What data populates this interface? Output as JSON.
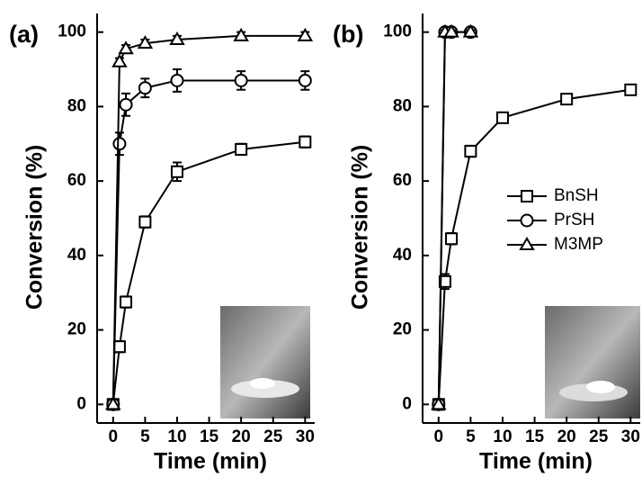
{
  "chart_data": [
    {
      "type": "line",
      "title": "(a)",
      "xlabel": "Time (min)",
      "ylabel": "Conversion (%)",
      "xlim": [
        -2.5,
        31.5
      ],
      "ylim": [
        -5,
        105
      ],
      "xticks": [
        0,
        5,
        10,
        15,
        20,
        25,
        30
      ],
      "yticks": [
        0,
        20,
        40,
        60,
        80,
        100
      ],
      "series": [
        {
          "marker": "square",
          "color": "#000000",
          "x": [
            0,
            1,
            2,
            5,
            10,
            20,
            30
          ],
          "values": [
            0,
            15.5,
            27.5,
            49,
            62.5,
            68.5,
            70.5
          ],
          "errors": [
            0,
            1.5,
            1.5,
            1.5,
            2.5,
            1.5,
            1.5
          ]
        },
        {
          "marker": "circle",
          "color": "#000000",
          "x": [
            0,
            1,
            2,
            5,
            10,
            20,
            30
          ],
          "values": [
            0,
            70,
            80.5,
            85,
            87,
            87,
            87
          ],
          "errors": [
            0,
            3,
            3,
            2.5,
            3,
            2.5,
            2.5
          ]
        },
        {
          "marker": "triangle",
          "color": "#000000",
          "x": [
            0,
            1,
            2,
            5,
            10,
            20,
            30
          ],
          "values": [
            0,
            92,
            95.5,
            97,
            98,
            99,
            99
          ],
          "errors": [
            0,
            1,
            1,
            1,
            1,
            1,
            1
          ]
        }
      ]
    },
    {
      "type": "line",
      "title": "(b)",
      "xlabel": "Time (min)",
      "ylabel": "Conversion (%)",
      "xlim": [
        -2.5,
        31.5
      ],
      "ylim": [
        -5,
        105
      ],
      "xticks": [
        0,
        5,
        10,
        15,
        20,
        25,
        30
      ],
      "yticks": [
        0,
        20,
        40,
        60,
        80,
        100
      ],
      "legend": "right",
      "series": [
        {
          "name": "BnSH",
          "marker": "square",
          "color": "#000000",
          "x": [
            0,
            1,
            2,
            5,
            10,
            20,
            30
          ],
          "values": [
            0,
            33,
            44.5,
            68,
            77,
            82,
            84.5
          ],
          "errors": [
            0,
            2,
            1.5,
            1.5,
            1,
            1,
            1
          ]
        },
        {
          "name": "PrSH",
          "marker": "circle",
          "color": "#000000",
          "x": [
            0,
            1,
            2,
            5
          ],
          "values": [
            0,
            100,
            100,
            100
          ],
          "errors": [
            0,
            0.5,
            0.5,
            0.5
          ]
        },
        {
          "name": "M3MP",
          "marker": "triangle",
          "color": "#000000",
          "x": [
            0,
            1,
            2,
            5
          ],
          "values": [
            0,
            100,
            100,
            100
          ],
          "errors": [
            0,
            0.5,
            0.5,
            0.5
          ]
        }
      ]
    }
  ]
}
